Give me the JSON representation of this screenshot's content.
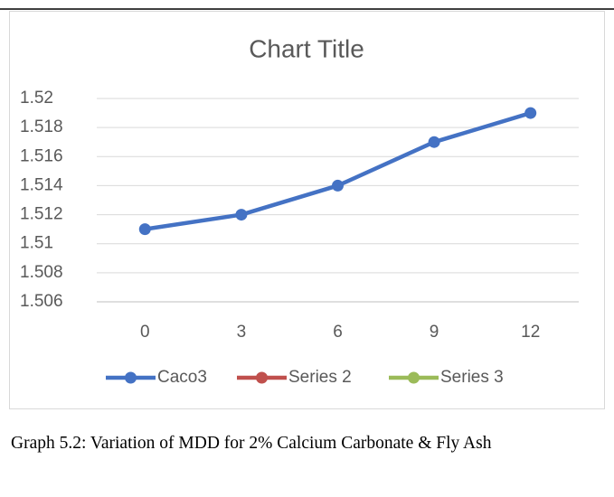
{
  "chart_data": {
    "type": "line",
    "title": "Chart Title",
    "categories": [
      "0",
      "3",
      "6",
      "9",
      "12"
    ],
    "series": [
      {
        "name": "Caco3",
        "color": "#4472c4",
        "values": [
          1.511,
          1.512,
          1.514,
          1.517,
          1.519
        ]
      },
      {
        "name": "Series 2",
        "color": "#c0504d",
        "values": [
          null,
          null,
          null,
          null,
          null
        ]
      },
      {
        "name": "Series 3",
        "color": "#9bbb59",
        "values": [
          null,
          null,
          null,
          null,
          null
        ]
      }
    ],
    "ylim": [
      1.506,
      1.52
    ],
    "yticks": [
      1.506,
      1.508,
      1.51,
      1.512,
      1.514,
      1.516,
      1.518,
      1.52
    ],
    "grid": true,
    "legend": "bottom"
  },
  "caption": "Graph 5.2: Variation of MDD for 2% Calcium Carbonate & Fly Ash"
}
